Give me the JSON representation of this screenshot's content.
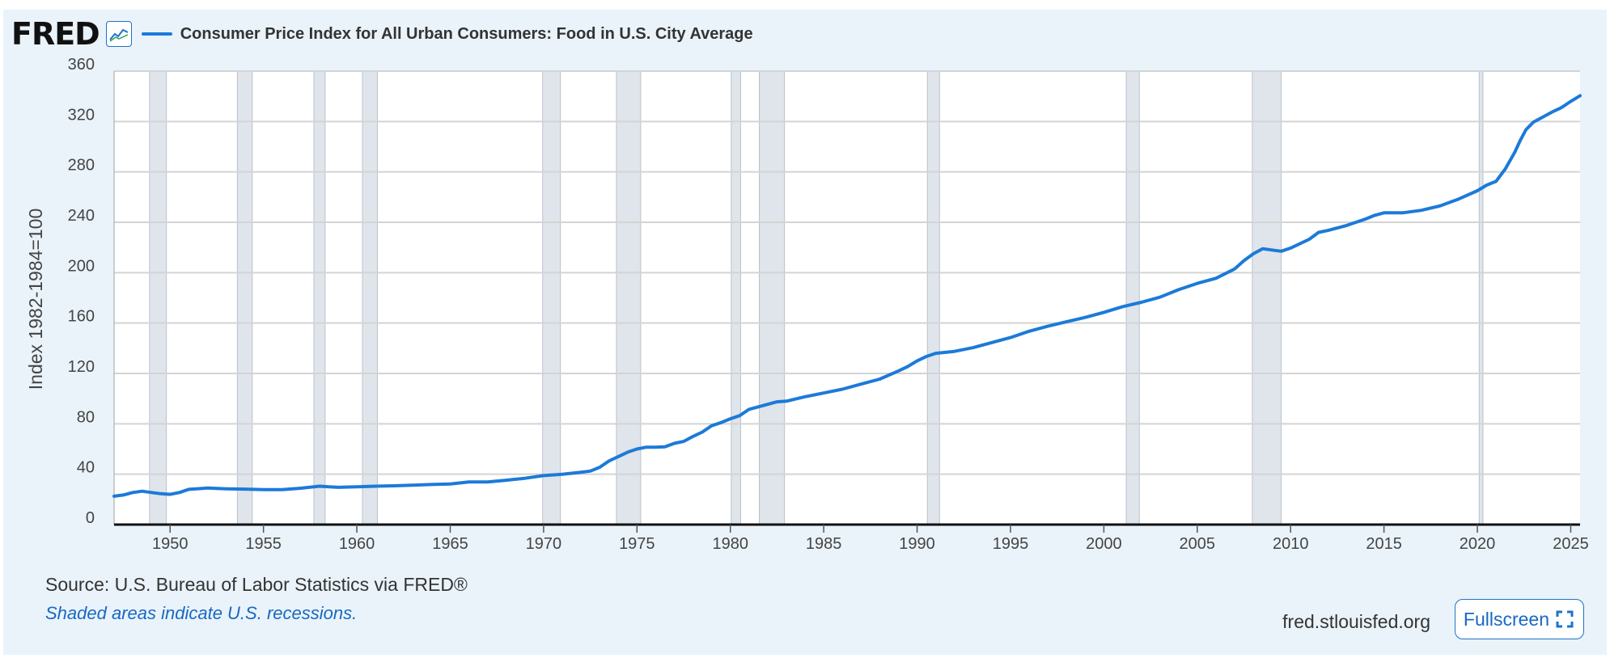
{
  "header": {
    "logo_text": "FRED",
    "series_title": "Consumer Price Index for All Urban Consumers: Food in U.S. City Average"
  },
  "footer": {
    "source": "Source: U.S. Bureau of Labor Statistics via FRED®",
    "recession_note": "Shaded areas indicate U.S. recessions.",
    "site": "fred.stlouisfed.org",
    "fullscreen_label": "Fullscreen"
  },
  "colors": {
    "line": "#1c7ad8",
    "recession": "#dfe5eb",
    "background": "#eaf3fa",
    "accent": "#1d73c9"
  },
  "icons": {
    "chart_toggle": "line-chart-icon",
    "fullscreen": "expand-icon"
  },
  "chart_data": {
    "type": "line",
    "title": "Consumer Price Index for All Urban Consumers: Food in U.S. City Average",
    "xlabel": "",
    "ylabel": "Index 1982-1984=100",
    "xlim": [
      1947,
      2025.5
    ],
    "ylim": [
      0,
      360
    ],
    "x_ticks": [
      1950,
      1955,
      1960,
      1965,
      1970,
      1975,
      1980,
      1985,
      1990,
      1995,
      2000,
      2005,
      2010,
      2015,
      2020,
      2025
    ],
    "y_ticks": [
      0,
      40,
      80,
      120,
      160,
      200,
      240,
      280,
      320,
      360
    ],
    "grid": true,
    "recessions": [
      [
        1948.9,
        1949.8
      ],
      [
        1953.6,
        1954.4
      ],
      [
        1957.7,
        1958.3
      ],
      [
        1960.3,
        1961.1
      ],
      [
        1969.95,
        1970.9
      ],
      [
        1973.9,
        1975.2
      ],
      [
        1980.05,
        1980.55
      ],
      [
        1981.55,
        1982.9
      ],
      [
        1990.55,
        1991.2
      ],
      [
        2001.2,
        2001.9
      ],
      [
        2007.95,
        2009.5
      ],
      [
        2020.1,
        2020.3
      ]
    ],
    "series": [
      {
        "name": "CPI Food, U.S. City Average",
        "x": [
          1947,
          1947.5,
          1948,
          1948.5,
          1949,
          1949.5,
          1950,
          1950.5,
          1951,
          1951.5,
          1952,
          1952.5,
          1953,
          1954,
          1955,
          1956,
          1957,
          1958,
          1958.5,
          1959,
          1960,
          1961,
          1962,
          1963,
          1964,
          1965,
          1966,
          1967,
          1968,
          1969,
          1970,
          1971,
          1972,
          1972.5,
          1973,
          1973.5,
          1974,
          1974.5,
          1975,
          1975.5,
          1976,
          1976.5,
          1977,
          1977.5,
          1978,
          1978.5,
          1979,
          1979.5,
          1980,
          1980.5,
          1981,
          1981.5,
          1982,
          1982.5,
          1983,
          1984,
          1985,
          1986,
          1987,
          1988,
          1989,
          1989.5,
          1990,
          1990.5,
          1991,
          1992,
          1993,
          1994,
          1995,
          1996,
          1997,
          1998,
          1999,
          2000,
          2001,
          2002,
          2003,
          2004,
          2005,
          2006,
          2007,
          2007.5,
          2008,
          2008.5,
          2009,
          2009.5,
          2010,
          2011,
          2011.5,
          2012,
          2013,
          2014,
          2014.5,
          2015,
          2016,
          2017,
          2018,
          2019,
          2020,
          2020.5,
          2021,
          2021.5,
          2022,
          2022.3,
          2022.6,
          2023,
          2023.5,
          2024,
          2024.5,
          2025,
          2025.5
        ],
        "values": [
          22.5,
          23.5,
          25.5,
          26.5,
          25.5,
          24.5,
          24.0,
          25.5,
          28.0,
          28.5,
          29.0,
          28.7,
          28.4,
          28.2,
          27.8,
          27.8,
          28.9,
          30.5,
          30.0,
          29.6,
          30.0,
          30.5,
          30.8,
          31.3,
          31.8,
          32.3,
          33.8,
          33.9,
          35.2,
          36.8,
          38.9,
          40.0,
          41.6,
          42.5,
          45.5,
          50.5,
          54.0,
          57.5,
          60.0,
          61.5,
          61.5,
          61.8,
          64.5,
          66.0,
          70.0,
          73.5,
          78.5,
          81.0,
          84.0,
          86.5,
          91.5,
          93.5,
          95.5,
          97.5,
          98.0,
          101.5,
          104.5,
          107.5,
          111.5,
          115.5,
          122.0,
          125.5,
          130.0,
          133.5,
          136.0,
          137.5,
          140.5,
          144.5,
          148.5,
          153.5,
          157.5,
          161.0,
          164.5,
          168.5,
          173.0,
          176.5,
          180.5,
          186.5,
          191.5,
          195.5,
          203.0,
          209.5,
          215.0,
          219.0,
          218.0,
          217.0,
          219.5,
          226.5,
          232.0,
          233.5,
          237.5,
          242.5,
          245.5,
          247.5,
          247.5,
          249.5,
          253.0,
          258.5,
          265.0,
          269.5,
          272.5,
          282.5,
          295.5,
          305.0,
          313.5,
          319.5,
          323.5,
          327.5,
          331.0,
          336.0,
          340.5
        ]
      }
    ]
  }
}
